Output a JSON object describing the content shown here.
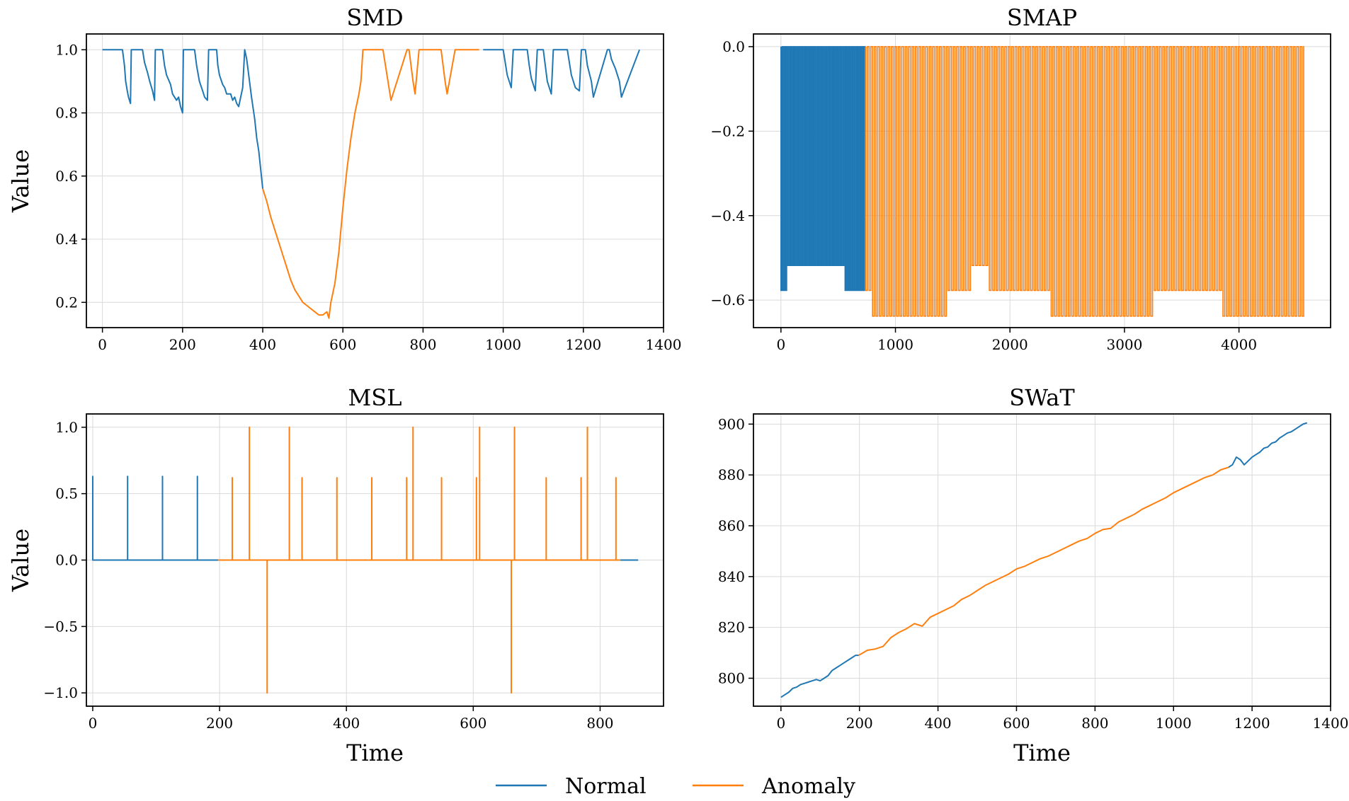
{
  "legend": {
    "items": [
      {
        "label": "Normal",
        "color": "#1f77b4"
      },
      {
        "label": "Anomaly",
        "color": "#ff7f0e"
      }
    ],
    "placement": "bottom-center"
  },
  "chart_data": [
    {
      "type": "line",
      "title": "SMD",
      "xlabel": "",
      "ylabel": "Value",
      "xlim": [
        -40,
        1400
      ],
      "ylim": [
        0.12,
        1.05
      ],
      "xticks": [
        0,
        200,
        400,
        600,
        800,
        1000,
        1200,
        1400
      ],
      "yticks": [
        0.2,
        0.4,
        0.6,
        0.8,
        1.0
      ],
      "ytick_labels": [
        "0.2",
        "0.4",
        "0.6",
        "0.8",
        "1.0"
      ],
      "grid": true,
      "series": [
        {
          "name": "Normal",
          "color": "#1f77b4",
          "segments": [
            {
              "x": [
                0,
                50,
                55,
                58,
                62,
                65,
                70,
                72,
                100,
                105,
                112,
                118,
                125,
                130,
                132,
                150,
                155,
                160,
                170,
                175,
                185,
                190,
                195,
                200,
                202,
                230,
                235,
                242,
                250,
                255,
                262,
                265,
                285,
                288,
                292,
                300,
                305,
                310,
                320,
                325,
                330,
                335,
                340,
                345,
                350,
                355,
                360,
                365,
                372,
                380,
                385,
                390,
                395,
                400
              ],
              "y": [
                1.0,
                1.0,
                0.95,
                0.9,
                0.87,
                0.85,
                0.83,
                1.0,
                1.0,
                0.96,
                0.93,
                0.9,
                0.87,
                0.84,
                1.0,
                1.0,
                0.95,
                0.92,
                0.89,
                0.86,
                0.84,
                0.85,
                0.82,
                0.8,
                1.0,
                1.0,
                0.95,
                0.9,
                0.87,
                0.85,
                0.84,
                1.0,
                1.0,
                0.95,
                0.92,
                0.89,
                0.88,
                0.86,
                0.86,
                0.84,
                0.85,
                0.83,
                0.82,
                0.85,
                0.88,
                1.0,
                0.97,
                0.92,
                0.85,
                0.78,
                0.72,
                0.68,
                0.62,
                0.56
              ]
            },
            {
              "x": [
                950,
                1000,
                1005,
                1010,
                1020,
                1025,
                1060,
                1065,
                1070,
                1080,
                1085,
                1100,
                1105,
                1110,
                1120,
                1125,
                1160,
                1165,
                1170,
                1180,
                1190,
                1195,
                1205,
                1210,
                1220,
                1225,
                1260,
                1265,
                1270,
                1280,
                1290,
                1295,
                1340
              ],
              "y": [
                1.0,
                1.0,
                0.96,
                0.92,
                0.88,
                1.0,
                1.0,
                0.95,
                0.91,
                0.87,
                1.0,
                1.0,
                0.95,
                0.9,
                0.86,
                1.0,
                1.0,
                0.96,
                0.92,
                0.88,
                0.87,
                1.0,
                1.0,
                0.95,
                0.9,
                0.85,
                1.0,
                1.0,
                0.97,
                0.94,
                0.9,
                0.85,
                1.0
              ]
            }
          ]
        },
        {
          "name": "Anomaly",
          "color": "#ff7f0e",
          "segments": [
            {
              "x": [
                400,
                410,
                420,
                430,
                440,
                450,
                460,
                470,
                480,
                490,
                500,
                510,
                520,
                530,
                540,
                550,
                560,
                565,
                570,
                580,
                590,
                600,
                610,
                620,
                630,
                640,
                645,
                650,
                700,
                705,
                710,
                715,
                720,
                760,
                765,
                770,
                775,
                780,
                790,
                800,
                845,
                850,
                855,
                860,
                880,
                940
              ],
              "y": [
                0.56,
                0.52,
                0.47,
                0.43,
                0.39,
                0.35,
                0.31,
                0.27,
                0.24,
                0.22,
                0.2,
                0.19,
                0.18,
                0.17,
                0.16,
                0.16,
                0.17,
                0.15,
                0.2,
                0.26,
                0.36,
                0.5,
                0.62,
                0.72,
                0.8,
                0.86,
                0.9,
                1.0,
                1.0,
                0.96,
                0.92,
                0.88,
                0.84,
                1.0,
                1.0,
                0.95,
                0.9,
                0.86,
                1.0,
                1.0,
                1.0,
                0.95,
                0.9,
                0.86,
                1.0,
                1.0
              ]
            }
          ]
        }
      ]
    },
    {
      "type": "line",
      "title": "SMAP",
      "xlabel": "",
      "ylabel": "",
      "xlim": [
        -240,
        4800
      ],
      "ylim": [
        -0.665,
        0.03
      ],
      "xticks": [
        0,
        1000,
        2000,
        3000,
        4000
      ],
      "yticks": [
        0.0,
        -0.2,
        -0.4,
        -0.6
      ],
      "ytick_labels": [
        "0.0",
        "−0.2",
        "−0.4",
        "−0.6"
      ],
      "grid": true,
      "series": [
        {
          "name": "Normal",
          "color": "#1f77b4",
          "pulses": {
            "x_start": 0,
            "x_end": 740,
            "period": 20,
            "high": 0.0,
            "lows": [
              {
                "from": 0,
                "to": 50,
                "low": -0.577
              },
              {
                "from": 50,
                "to": 550,
                "low": -0.518
              },
              {
                "from": 550,
                "to": 740,
                "low": -0.577
              }
            ]
          }
        },
        {
          "name": "Anomaly",
          "color": "#ff7f0e",
          "pulses": {
            "x_start": 740,
            "x_end": 4560,
            "period": 30,
            "high": 0.0,
            "lows": [
              {
                "from": 740,
                "to": 800,
                "low": -0.577
              },
              {
                "from": 800,
                "to": 1440,
                "low": -0.638
              },
              {
                "from": 1440,
                "to": 1660,
                "low": -0.577
              },
              {
                "from": 1660,
                "to": 1820,
                "low": -0.518
              },
              {
                "from": 1820,
                "to": 2360,
                "low": -0.577
              },
              {
                "from": 2360,
                "to": 3250,
                "low": -0.638
              },
              {
                "from": 3250,
                "to": 3840,
                "low": -0.577
              },
              {
                "from": 3840,
                "to": 4560,
                "low": -0.638
              }
            ]
          }
        }
      ]
    },
    {
      "type": "line",
      "title": "MSL",
      "xlabel": "Time",
      "ylabel": "Value",
      "xlim": [
        -10,
        900
      ],
      "ylim": [
        -1.1,
        1.1
      ],
      "xticks": [
        0,
        200,
        400,
        600,
        800
      ],
      "yticks": [
        1.0,
        0.5,
        0.0,
        -0.5,
        -1.0
      ],
      "ytick_labels": [
        "1.0",
        "0.5",
        "0.0",
        "−0.5",
        "−1.0"
      ],
      "grid": true,
      "series": [
        {
          "name": "Normal",
          "color": "#1f77b4",
          "segments": [
            {
              "x": [
                0,
                0,
                0,
                55,
                55,
                55,
                110,
                110,
                110,
                165,
                165,
                165,
                198
              ],
              "y": [
                0.0,
                0.63,
                0.0,
                0.0,
                0.63,
                0.0,
                0.0,
                0.63,
                0.0,
                0.0,
                0.63,
                0.0,
                0.0
              ]
            },
            {
              "x": [
                832,
                860
              ],
              "y": [
                0.0,
                0.0
              ]
            }
          ]
        },
        {
          "name": "Anomaly",
          "color": "#ff7f0e",
          "segments": [
            {
              "x": [
                198,
                220,
                220,
                220,
                247,
                247,
                247,
                275,
                275,
                275,
                310,
                310,
                310,
                330,
                330,
                330,
                385,
                385,
                385,
                440,
                440,
                440,
                495,
                495,
                495,
                505,
                505,
                505,
                550,
                550,
                550,
                605,
                605,
                605,
                610,
                610,
                610,
                660,
                660,
                660,
                665,
                665,
                665,
                715,
                715,
                715,
                770,
                770,
                770,
                780,
                780,
                780,
                825,
                825,
                825,
                832
              ],
              "y": [
                0.0,
                0.0,
                0.62,
                0.0,
                0.0,
                1.0,
                0.0,
                0.0,
                -1.0,
                0.0,
                0.0,
                1.0,
                0.0,
                0.0,
                0.62,
                0.0,
                0.0,
                0.62,
                0.0,
                0.0,
                0.62,
                0.0,
                0.0,
                0.62,
                0.0,
                0.0,
                1.0,
                0.0,
                0.0,
                0.62,
                0.0,
                0.0,
                0.62,
                0.0,
                0.0,
                1.0,
                0.0,
                0.0,
                -1.0,
                0.0,
                0.0,
                1.0,
                0.0,
                0.0,
                0.62,
                0.0,
                0.0,
                0.62,
                0.0,
                0.0,
                1.0,
                0.0,
                0.0,
                0.62,
                0.0,
                0.0
              ]
            }
          ]
        }
      ]
    },
    {
      "type": "line",
      "title": "SWaT",
      "xlabel": "Time",
      "ylabel": "",
      "xlim": [
        -70,
        1400
      ],
      "ylim": [
        789,
        904
      ],
      "xticks": [
        0,
        200,
        400,
        600,
        800,
        1000,
        1200,
        1400
      ],
      "yticks": [
        800,
        820,
        840,
        860,
        880,
        900
      ],
      "ytick_labels": [
        "800",
        "820",
        "840",
        "860",
        "880",
        "900"
      ],
      "grid": true,
      "series": [
        {
          "name": "Normal",
          "color": "#1f77b4",
          "segments": [
            {
              "x": [
                0,
                10,
                20,
                30,
                40,
                50,
                60,
                70,
                80,
                90,
                100,
                110,
                120,
                130,
                140,
                150,
                160,
                170,
                180,
                190,
                198
              ],
              "y": [
                792.5,
                793.5,
                794.5,
                796,
                796.5,
                797.5,
                798,
                798.5,
                799,
                799.5,
                799,
                800,
                801,
                803,
                804,
                805,
                806,
                807,
                808,
                809,
                809
              ]
            },
            {
              "x": [
                1140,
                1150,
                1160,
                1170,
                1180,
                1190,
                1200,
                1210,
                1220,
                1230,
                1240,
                1250,
                1260,
                1270,
                1280,
                1290,
                1300,
                1310,
                1320,
                1330,
                1340
              ],
              "y": [
                883,
                884,
                887,
                886,
                884,
                885.5,
                887,
                888,
                889,
                890.5,
                891,
                892.5,
                893,
                894.5,
                895.5,
                896.5,
                897,
                898,
                899,
                900,
                900.5
              ]
            }
          ]
        },
        {
          "name": "Anomaly",
          "color": "#ff7f0e",
          "segments": [
            {
              "x": [
                198,
                220,
                240,
                260,
                280,
                300,
                320,
                340,
                360,
                380,
                400,
                420,
                440,
                460,
                480,
                500,
                520,
                540,
                560,
                580,
                600,
                620,
                640,
                660,
                680,
                700,
                720,
                740,
                760,
                780,
                800,
                820,
                840,
                860,
                880,
                900,
                920,
                940,
                960,
                980,
                1000,
                1020,
                1040,
                1060,
                1080,
                1100,
                1120,
                1140
              ],
              "y": [
                809,
                811,
                811.5,
                812.5,
                816,
                818,
                819.5,
                821.5,
                820.5,
                824,
                825.5,
                827,
                828.5,
                831,
                832.5,
                834.5,
                836.5,
                838,
                839.5,
                841,
                843,
                844,
                845.5,
                847,
                848,
                849.5,
                851,
                852.5,
                854,
                855,
                857,
                858.5,
                859,
                861.5,
                863,
                864.5,
                866.5,
                868,
                869.5,
                871,
                873,
                874.5,
                876,
                877.5,
                879,
                880,
                882,
                883
              ]
            }
          ]
        }
      ]
    }
  ]
}
